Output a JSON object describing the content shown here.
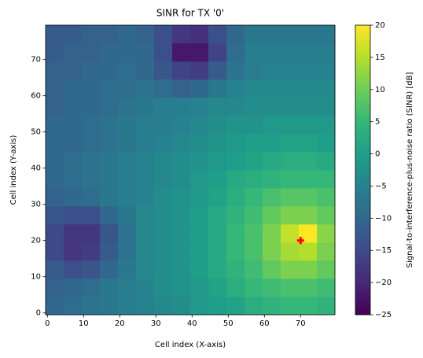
{
  "chart_data": {
    "type": "heatmap",
    "title": "SINR for TX '0'",
    "xlabel": "Cell index (X-axis)",
    "ylabel": "Cell index (Y-axis)",
    "colorbar_label": "Signal-to-interference-plus-noise ratio (SINR) [dB]",
    "colormap": "viridis",
    "xbins": [
      -0.5,
      4.5,
      9.5,
      14.5,
      19.5,
      24.5,
      29.5,
      34.5,
      39.5,
      44.5,
      49.5,
      54.5,
      59.5,
      64.5,
      69.5,
      74.5,
      79.5
    ],
    "ybins": [
      -0.5,
      4.5,
      9.5,
      14.5,
      19.5,
      24.5,
      29.5,
      34.5,
      39.5,
      44.5,
      49.5,
      54.5,
      59.5,
      64.5,
      69.5,
      74.5,
      79.5
    ],
    "values": [
      [
        -10,
        -9,
        -8,
        -7,
        -6,
        -5,
        -4,
        -3,
        -1,
        0,
        1,
        3,
        4,
        5,
        5,
        4
      ],
      [
        -11,
        -10,
        -9,
        -7,
        -6,
        -5,
        -3,
        -2,
        -1,
        1,
        3,
        5,
        6,
        7,
        7,
        6
      ],
      [
        -12,
        -14,
        -13,
        -10,
        -7,
        -4,
        -3,
        -2,
        0,
        2,
        4,
        6,
        9,
        11,
        11,
        9
      ],
      [
        -15,
        -18,
        -17,
        -12,
        -8,
        -4,
        -3,
        -2,
        0,
        2,
        5,
        7,
        11,
        14,
        15,
        11
      ],
      [
        -15,
        -18,
        -18,
        -13,
        -8,
        -4,
        -3,
        -2,
        0,
        2,
        5,
        7,
        11,
        16,
        20,
        12
      ],
      [
        -13,
        -14,
        -14,
        -10,
        -7,
        -4,
        -3,
        -2,
        0,
        2,
        4,
        6,
        9,
        11,
        11,
        9
      ],
      [
        -11,
        -10,
        -9,
        -7,
        -6,
        -5,
        -3,
        -2,
        -1,
        1,
        3,
        5,
        7,
        8,
        8,
        7
      ],
      [
        -10,
        -9,
        -8,
        -7,
        -6,
        -5,
        -4,
        -3,
        -1,
        0,
        2,
        3,
        4,
        5,
        5,
        5
      ],
      [
        -10,
        -9,
        -8,
        -7,
        -6,
        -5,
        -4,
        -3,
        -2,
        -1,
        0,
        1,
        2,
        3,
        3,
        2
      ],
      [
        -10,
        -10,
        -9,
        -8,
        -7,
        -6,
        -5,
        -4,
        -3,
        -2,
        -1,
        0,
        0,
        1,
        1,
        0
      ],
      [
        -10,
        -10,
        -9,
        -8,
        -7,
        -6,
        -6,
        -5,
        -4,
        -3,
        -2,
        -2,
        -1,
        -1,
        -1,
        -1
      ],
      [
        -11,
        -10,
        -10,
        -9,
        -8,
        -7,
        -6,
        -6,
        -5,
        -4,
        -4,
        -3,
        -3,
        -3,
        -3,
        -3
      ],
      [
        -11,
        -10,
        -10,
        -9,
        -9,
        -8,
        -9,
        -11,
        -10,
        -7,
        -5,
        -4,
        -4,
        -4,
        -4,
        -4
      ],
      [
        -11,
        -11,
        -10,
        -10,
        -9,
        -10,
        -13,
        -16,
        -17,
        -12,
        -8,
        -6,
        -5,
        -5,
        -5,
        -5
      ],
      [
        -12,
        -11,
        -11,
        -10,
        -10,
        -10,
        -14,
        -22,
        -22,
        -16,
        -9,
        -6,
        -6,
        -6,
        -6,
        -6
      ],
      [
        -12,
        -12,
        -11,
        -11,
        -10,
        -11,
        -14,
        -18,
        -19,
        -14,
        -10,
        -7,
        -7,
        -7,
        -7,
        -7
      ]
    ],
    "transmitters": [
      {
        "x": 70,
        "y": 20,
        "color": "#ff0000"
      }
    ],
    "xlim": [
      -0.5,
      79.5
    ],
    "xticks": [
      0,
      10,
      20,
      30,
      40,
      50,
      60,
      70
    ],
    "ylim": [
      -0.5,
      79.5
    ],
    "yticks": [
      0,
      10,
      20,
      30,
      40,
      50,
      60,
      70
    ],
    "clim": [
      -25,
      20
    ],
    "cticks": [
      {
        "value": -25,
        "label": "−25"
      },
      {
        "value": -20,
        "label": "−20"
      },
      {
        "value": -15,
        "label": "−15"
      },
      {
        "value": -10,
        "label": "−10"
      },
      {
        "value": -5,
        "label": "−5"
      },
      0,
      5,
      10,
      15,
      20
    ]
  }
}
